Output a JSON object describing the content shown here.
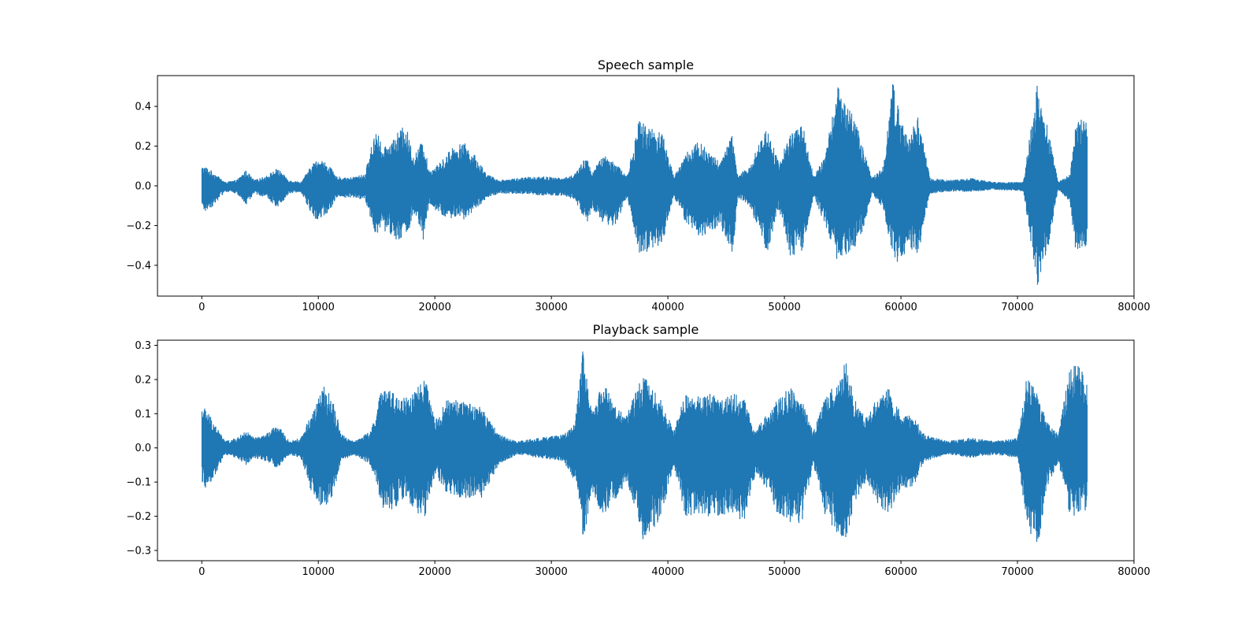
{
  "chart_data": [
    {
      "type": "line",
      "title": "Speech sample",
      "xlabel": "",
      "ylabel": "",
      "xlim": [
        -3800,
        80000
      ],
      "ylim": [
        -0.555,
        0.555
      ],
      "xticks": [
        0,
        10000,
        20000,
        30000,
        40000,
        50000,
        60000,
        70000,
        80000
      ],
      "xtick_labels": [
        "0",
        "10000",
        "20000",
        "30000",
        "40000",
        "50000",
        "60000",
        "70000",
        "80000"
      ],
      "yticks": [
        0.4,
        0.2,
        0.0,
        -0.2,
        -0.4
      ],
      "ytick_labels": [
        "0.4",
        "0.2",
        "0.0",
        "−0.2",
        "−0.4"
      ],
      "grid": false,
      "color": "#1f77b4",
      "n_samples": 76000,
      "envelope": {
        "x": [
          0,
          300,
          1000,
          2000,
          3000,
          3800,
          4500,
          5500,
          6500,
          7500,
          8500,
          9600,
          10200,
          11000,
          11500,
          12500,
          14000,
          15000,
          15500,
          16500,
          17500,
          18200,
          19000,
          19500,
          20500,
          21500,
          22500,
          23500,
          24500,
          25500,
          27000,
          29000,
          31000,
          32000,
          33000,
          33500,
          34500,
          35500,
          36500,
          37500,
          38500,
          39500,
          40500,
          41500,
          42500,
          43500,
          44500,
          45500,
          46000,
          47000,
          48500,
          49500,
          50500,
          51500,
          52500,
          53500,
          54500,
          55500,
          56500,
          57500,
          58500,
          59300,
          60000,
          60500,
          61500,
          62500,
          64000,
          66000,
          68000,
          70500,
          71700,
          72500,
          73500,
          74500,
          75000,
          75800,
          76000
        ],
        "upper": [
          0.1,
          0.1,
          0.07,
          0.02,
          0.03,
          0.08,
          0.03,
          0.05,
          0.09,
          0.03,
          0.02,
          0.12,
          0.14,
          0.1,
          0.05,
          0.04,
          0.06,
          0.31,
          0.18,
          0.25,
          0.31,
          0.15,
          0.24,
          0.08,
          0.12,
          0.2,
          0.22,
          0.15,
          0.06,
          0.03,
          0.04,
          0.05,
          0.04,
          0.06,
          0.15,
          0.07,
          0.16,
          0.12,
          0.05,
          0.33,
          0.3,
          0.28,
          0.05,
          0.16,
          0.23,
          0.18,
          0.12,
          0.26,
          0.05,
          0.1,
          0.31,
          0.12,
          0.26,
          0.33,
          0.05,
          0.15,
          0.5,
          0.45,
          0.25,
          0.04,
          0.1,
          0.54,
          0.34,
          0.26,
          0.35,
          0.04,
          0.03,
          0.04,
          0.02,
          0.02,
          0.52,
          0.32,
          0.02,
          0.06,
          0.33,
          0.35,
          0.35
        ],
        "lower": [
          -0.13,
          -0.13,
          -0.1,
          -0.03,
          -0.04,
          -0.1,
          -0.04,
          -0.06,
          -0.11,
          -0.04,
          -0.03,
          -0.17,
          -0.17,
          -0.13,
          -0.06,
          -0.06,
          -0.07,
          -0.26,
          -0.22,
          -0.27,
          -0.27,
          -0.15,
          -0.28,
          -0.1,
          -0.15,
          -0.17,
          -0.17,
          -0.12,
          -0.06,
          -0.04,
          -0.04,
          -0.05,
          -0.05,
          -0.07,
          -0.2,
          -0.12,
          -0.2,
          -0.2,
          -0.06,
          -0.34,
          -0.33,
          -0.3,
          -0.06,
          -0.18,
          -0.26,
          -0.25,
          -0.2,
          -0.38,
          -0.06,
          -0.1,
          -0.35,
          -0.12,
          -0.35,
          -0.35,
          -0.05,
          -0.2,
          -0.37,
          -0.34,
          -0.28,
          -0.04,
          -0.12,
          -0.36,
          -0.41,
          -0.3,
          -0.35,
          -0.04,
          -0.03,
          -0.03,
          -0.02,
          -0.03,
          -0.51,
          -0.36,
          -0.02,
          -0.08,
          -0.34,
          -0.32,
          -0.3
        ]
      }
    },
    {
      "type": "line",
      "title": "Playback sample",
      "xlabel": "",
      "ylabel": "",
      "xlim": [
        -3800,
        80000
      ],
      "ylim": [
        -0.33,
        0.315
      ],
      "xticks": [
        0,
        10000,
        20000,
        30000,
        40000,
        50000,
        60000,
        70000,
        80000
      ],
      "xtick_labels": [
        "0",
        "10000",
        "20000",
        "30000",
        "40000",
        "50000",
        "60000",
        "70000",
        "80000"
      ],
      "yticks": [
        0.3,
        0.2,
        0.1,
        0.0,
        -0.1,
        -0.2,
        -0.3
      ],
      "ytick_labels": [
        "0.3",
        "0.2",
        "0.1",
        "0.0",
        "−0.1",
        "−0.2",
        "−0.3"
      ],
      "grid": false,
      "color": "#1f77b4",
      "n_samples": 76000,
      "envelope": {
        "x": [
          0,
          300,
          1000,
          2000,
          3000,
          3800,
          4500,
          5500,
          6500,
          7500,
          8500,
          9600,
          10500,
          11200,
          12000,
          13000,
          14500,
          15500,
          16500,
          17500,
          18500,
          19200,
          20000,
          21000,
          22500,
          24000,
          25500,
          27000,
          29000,
          31000,
          32000,
          32700,
          33500,
          34500,
          35500,
          36500,
          37800,
          38500,
          39500,
          40500,
          41500,
          42500,
          43500,
          44500,
          45500,
          46500,
          47500,
          48500,
          49500,
          50500,
          51500,
          52500,
          53500,
          54500,
          55300,
          56000,
          57000,
          58000,
          59000,
          60000,
          61000,
          62000,
          64000,
          66000,
          68000,
          70000,
          70800,
          71700,
          72500,
          73500,
          74500,
          75300,
          76000
        ],
        "upper": [
          0.12,
          0.12,
          0.08,
          0.02,
          0.03,
          0.05,
          0.03,
          0.04,
          0.07,
          0.02,
          0.03,
          0.12,
          0.18,
          0.15,
          0.04,
          0.02,
          0.05,
          0.18,
          0.16,
          0.15,
          0.18,
          0.2,
          0.08,
          0.14,
          0.14,
          0.12,
          0.04,
          0.02,
          0.03,
          0.04,
          0.07,
          0.29,
          0.1,
          0.2,
          0.12,
          0.1,
          0.22,
          0.18,
          0.14,
          0.05,
          0.16,
          0.15,
          0.16,
          0.15,
          0.16,
          0.15,
          0.05,
          0.1,
          0.15,
          0.18,
          0.14,
          0.05,
          0.15,
          0.2,
          0.26,
          0.15,
          0.09,
          0.15,
          0.18,
          0.1,
          0.1,
          0.04,
          0.02,
          0.03,
          0.02,
          0.03,
          0.21,
          0.16,
          0.08,
          0.04,
          0.24,
          0.24,
          0.2
        ],
        "lower": [
          -0.1,
          -0.12,
          -0.09,
          -0.02,
          -0.03,
          -0.05,
          -0.03,
          -0.04,
          -0.06,
          -0.02,
          -0.03,
          -0.15,
          -0.18,
          -0.15,
          -0.04,
          -0.02,
          -0.05,
          -0.18,
          -0.18,
          -0.14,
          -0.2,
          -0.2,
          -0.08,
          -0.13,
          -0.15,
          -0.15,
          -0.05,
          -0.02,
          -0.03,
          -0.04,
          -0.1,
          -0.27,
          -0.15,
          -0.2,
          -0.15,
          -0.1,
          -0.28,
          -0.25,
          -0.2,
          -0.05,
          -0.2,
          -0.2,
          -0.2,
          -0.2,
          -0.2,
          -0.22,
          -0.08,
          -0.12,
          -0.2,
          -0.22,
          -0.22,
          -0.05,
          -0.2,
          -0.25,
          -0.27,
          -0.16,
          -0.1,
          -0.17,
          -0.2,
          -0.12,
          -0.12,
          -0.04,
          -0.02,
          -0.03,
          -0.02,
          -0.03,
          -0.22,
          -0.31,
          -0.12,
          -0.04,
          -0.2,
          -0.2,
          -0.18
        ]
      }
    }
  ]
}
